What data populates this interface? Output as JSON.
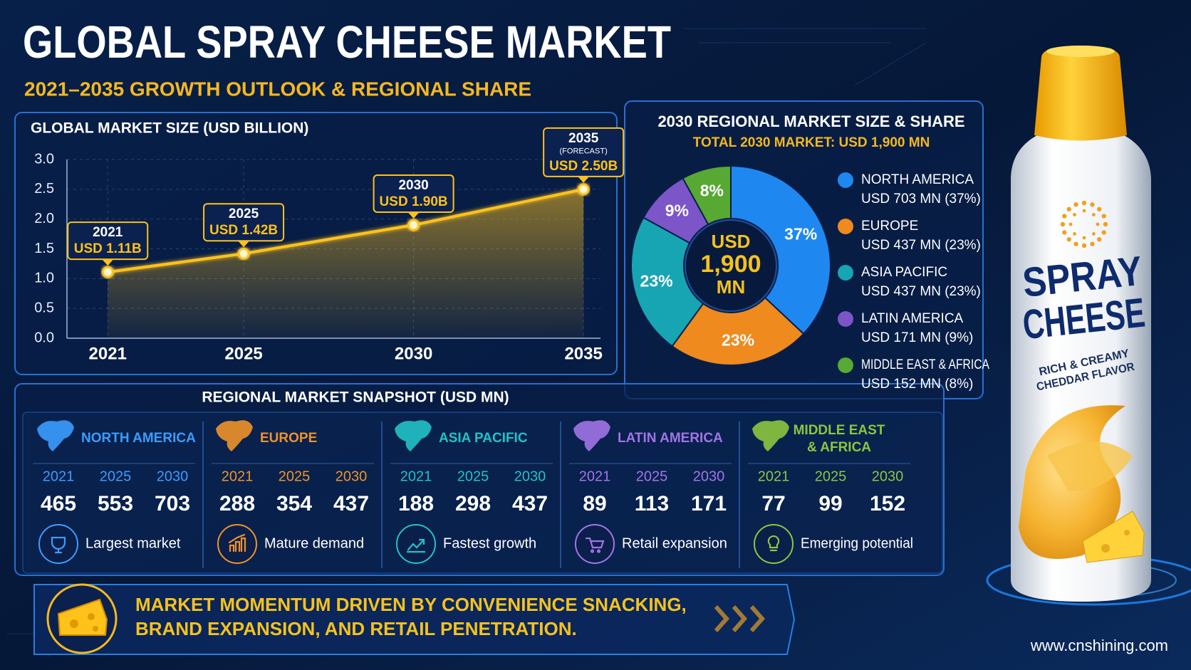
{
  "header": {
    "title": "GLOBAL SPRAY CHEESE MARKET",
    "subtitle": "2021–2035 GROWTH OUTLOOK & REGIONAL SHARE"
  },
  "chart_data": [
    {
      "type": "line",
      "title": "GLOBAL MARKET SIZE (USD BILLION)",
      "x": [
        2021,
        2025,
        2030,
        2035
      ],
      "values": [
        1.11,
        1.42,
        1.9,
        2.5
      ],
      "value_labels": [
        "USD 1.11B",
        "USD 1.42B",
        "USD 1.90B",
        "USD 2.50B"
      ],
      "annotations": [
        {
          "x": 2035,
          "text": "(FORECAST)"
        }
      ],
      "color": "#ffc21a",
      "xlim": [
        2019.8,
        2035.5
      ],
      "xticks": [
        2021,
        2025,
        2030,
        2035
      ],
      "ylim": [
        0,
        3
      ],
      "yticks": [
        {
          "value": 0,
          "label": "0.0"
        },
        0.5,
        {
          "value": 1,
          "label": "1.0"
        },
        1.5,
        {
          "value": 2,
          "label": "2.0"
        },
        2.5,
        {
          "value": 3,
          "label": "3.0"
        }
      ],
      "grid": true
    },
    {
      "type": "pie",
      "title": "2030 REGIONAL MARKET SIZE & SHARE",
      "subtitle": "TOTAL 2030 MARKET: USD 1,900 MN",
      "center_label": [
        "USD",
        "1,900",
        "MN"
      ],
      "categories": [
        "NORTH AMERICA",
        "EUROPE",
        "ASIA PACIFIC",
        "LATIN AMERICA",
        "MIDDLE EAST & AFRICA"
      ],
      "values": [
        37,
        23,
        23,
        9,
        8
      ],
      "value_labels": [
        "37%",
        "23%",
        "23%",
        "9%",
        "8%"
      ],
      "legend_details": [
        "USD 703 MN (37%)",
        "USD 437 MN (23%)",
        "USD 437 MN (23%)",
        "USD 171 MN (9%)",
        "USD 152 MN (8%)"
      ],
      "colors": [
        "#1e88f0",
        "#ef8a1e",
        "#17a5b3",
        "#7c55c8",
        "#58a834"
      ],
      "legend": "right"
    }
  ],
  "snapshot": {
    "title": "REGIONAL MARKET SNAPSHOT (USD MN)",
    "regions": [
      {
        "name": [
          "NORTH AMERICA"
        ],
        "color": "#3c9cff",
        "years": [
          2021,
          2025,
          2030
        ],
        "values": [
          465,
          553,
          703
        ],
        "note": "Largest market"
      },
      {
        "name": [
          "EUROPE"
        ],
        "color": "#f0922a",
        "years": [
          2021,
          2025,
          2030
        ],
        "values": [
          288,
          354,
          437
        ],
        "note": "Mature demand"
      },
      {
        "name": [
          "ASIA PACIFIC"
        ],
        "color": "#22c2c6",
        "years": [
          2021,
          2025,
          2030
        ],
        "values": [
          188,
          298,
          437
        ],
        "note": "Fastest growth"
      },
      {
        "name": [
          "LATIN AMERICA"
        ],
        "color": "#a274e6",
        "years": [
          2021,
          2025,
          2030
        ],
        "values": [
          89,
          113,
          171
        ],
        "note": "Retail expansion"
      },
      {
        "name": [
          "MIDDLE EAST",
          "& AFRICA"
        ],
        "color": "#8cc63e",
        "years": [
          2021,
          2025,
          2030
        ],
        "values": [
          77,
          99,
          152
        ],
        "note": "Emerging potential"
      }
    ]
  },
  "footer": {
    "lines": [
      "MARKET MOMENTUM DRIVEN BY CONVENIENCE SNACKING,",
      "BRAND EXPANSION, AND RETAIL PENETRATION."
    ],
    "website": "www.cnshining.com"
  },
  "product": {
    "name": [
      "SPRAY",
      "CHEESE"
    ],
    "tagline": [
      "RICH & CREAMY",
      "CHEDDAR FLAVOR"
    ]
  }
}
